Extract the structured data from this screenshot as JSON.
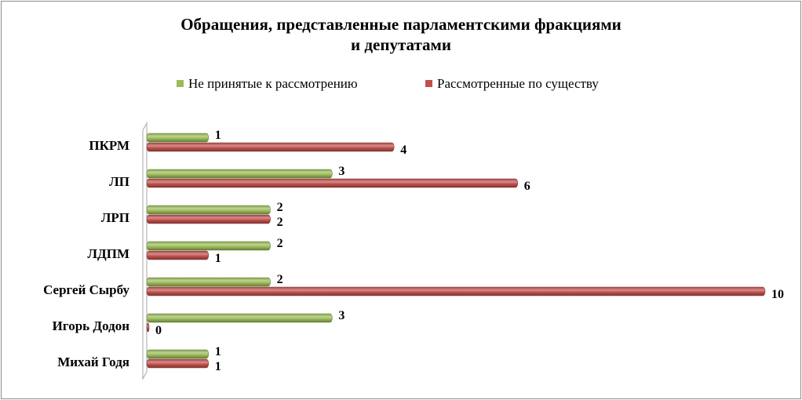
{
  "chart_data": {
    "type": "bar",
    "orientation": "horizontal",
    "title": "Обращения, представленные парламентскими  фракциями и депутатами",
    "title_lines": [
      "Обращения, представленные парламентскими  фракциями",
      "и депутатами"
    ],
    "categories": [
      "ПКРМ",
      "ЛП",
      "ЛРП",
      "ЛДПМ",
      "Сергей Сырбу",
      "Игорь Додон",
      "Михай Годя"
    ],
    "series": [
      {
        "name": "Не принятые к рассмотрению",
        "color": "#9bbb59",
        "values": [
          1,
          3,
          2,
          2,
          2,
          3,
          1
        ]
      },
      {
        "name": "Рассмотренные по существу",
        "color": "#c0504d",
        "values": [
          4,
          6,
          2,
          1,
          10,
          0,
          1
        ]
      }
    ],
    "xlim": [
      0,
      10
    ],
    "grid": false,
    "legend_position": "top",
    "style": "3d-cylinder"
  }
}
